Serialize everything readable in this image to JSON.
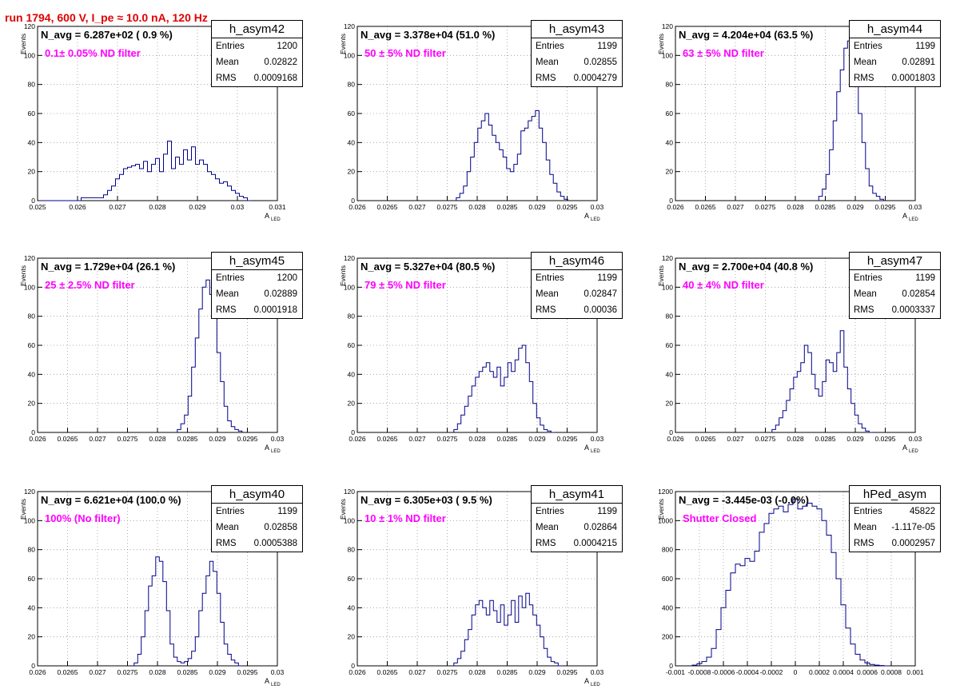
{
  "title": "run 1794,   600 V, I_pe ≈ 10.0 nA, 120 Hz",
  "stat_labels": {
    "entries": "Entries",
    "mean": "Mean",
    "rms": "RMS"
  },
  "chart_data": [
    {
      "type": "bar",
      "name": "h_asym42",
      "navg": "N_avg = 6.287e+02 ( 0.9 %)",
      "note": "0.1± 0.05% ND filter",
      "entries": "1200",
      "mean": "0.02822",
      "rms": "0.0009168",
      "xlim": [
        0.025,
        0.031
      ],
      "ylim": [
        0,
        120
      ],
      "xticks": [
        "0.025",
        "0.026",
        "0.027",
        "0.028",
        "0.029",
        "0.03",
        "0.031"
      ],
      "yticks": [
        "0",
        "20",
        "40",
        "60",
        "80",
        "100",
        "120"
      ],
      "xlabel": "A",
      "xlabel_sub": "LED",
      "ylabel": "Events",
      "x": [
        0.02558,
        0.0266,
        0.0267,
        0.0268,
        0.0269,
        0.027,
        0.0271,
        0.0272,
        0.0273,
        0.0274,
        0.0275,
        0.0276,
        0.0277,
        0.0278,
        0.0279,
        0.028,
        0.0281,
        0.0282,
        0.0283,
        0.0284,
        0.0285,
        0.0286,
        0.0287,
        0.0288,
        0.0289,
        0.029,
        0.0291,
        0.0292,
        0.0293,
        0.0294,
        0.0295,
        0.0296,
        0.0297,
        0.0298,
        0.0299,
        0.03,
        0.0301,
        0.0302,
        0.0303
      ],
      "values": [
        0,
        2,
        4,
        7,
        10,
        15,
        18,
        22,
        23,
        24,
        25,
        22,
        27,
        20,
        25,
        29,
        20,
        32,
        41,
        22,
        30,
        25,
        35,
        28,
        37,
        25,
        28,
        25,
        20,
        18,
        15,
        12,
        13,
        10,
        7,
        5,
        3,
        2,
        0
      ]
    },
    {
      "type": "bar",
      "name": "h_asym43",
      "navg": "N_avg = 3.378e+04 (51.0 %)",
      "note": "50 ± 5% ND filter",
      "entries": "1199",
      "mean": "0.02855",
      "rms": "0.0004279",
      "xlim": [
        0.026,
        0.03
      ],
      "ylim": [
        0,
        120
      ],
      "xticks": [
        "0.026",
        "0.0265",
        "0.027",
        "0.0275",
        "0.028",
        "0.0285",
        "0.029",
        "0.0295",
        "0.03"
      ],
      "yticks": [
        "0",
        "20",
        "40",
        "60",
        "80",
        "100",
        "120"
      ],
      "xlabel": "A",
      "xlabel_sub": "LED",
      "ylabel": "Events",
      "x": [
        0.02768,
        0.02774,
        0.0278,
        0.02786,
        0.02792,
        0.02798,
        0.02804,
        0.0281,
        0.02816,
        0.02822,
        0.02828,
        0.02834,
        0.0284,
        0.02846,
        0.02852,
        0.02858,
        0.02864,
        0.0287,
        0.02876,
        0.02882,
        0.02888,
        0.02894,
        0.029,
        0.02906,
        0.02912,
        0.02918,
        0.02924,
        0.0293,
        0.02936,
        0.02942,
        0.02948
      ],
      "values": [
        2,
        5,
        10,
        20,
        30,
        40,
        50,
        55,
        60,
        52,
        45,
        40,
        35,
        30,
        22,
        20,
        25,
        32,
        48,
        50,
        55,
        58,
        62,
        50,
        40,
        28,
        18,
        12,
        6,
        3,
        1
      ]
    },
    {
      "type": "bar",
      "name": "h_asym44",
      "navg": "N_avg = 4.204e+04 (63.5 %)",
      "note": "63 ± 5% ND filter",
      "entries": "1199",
      "mean": "0.02891",
      "rms": "0.0001803",
      "xlim": [
        0.026,
        0.03
      ],
      "ylim": [
        0,
        120
      ],
      "xticks": [
        "0.026",
        "0.0265",
        "0.027",
        "0.0275",
        "0.028",
        "0.0285",
        "0.029",
        "0.0295",
        "0.03"
      ],
      "yticks": [
        "0",
        "20",
        "40",
        "60",
        "80",
        "100",
        "120"
      ],
      "xlabel": "A",
      "xlabel_sub": "LED",
      "ylabel": "Events",
      "x": [
        0.02842,
        0.02848,
        0.02854,
        0.0286,
        0.02866,
        0.02872,
        0.02878,
        0.02884,
        0.0289,
        0.02896,
        0.02902,
        0.02908,
        0.02914,
        0.0292,
        0.02926,
        0.02932,
        0.02938,
        0.02944
      ],
      "values": [
        3,
        8,
        18,
        35,
        55,
        75,
        90,
        105,
        110,
        100,
        85,
        60,
        40,
        22,
        10,
        5,
        3,
        1
      ]
    },
    {
      "type": "bar",
      "name": "h_asym45",
      "navg": "N_avg = 1.729e+04 (26.1 %)",
      "note": "25 ± 2.5% ND filter",
      "entries": "1200",
      "mean": "0.02889",
      "rms": "0.0001918",
      "xlim": [
        0.026,
        0.03
      ],
      "ylim": [
        0,
        120
      ],
      "xticks": [
        "0.026",
        "0.0265",
        "0.027",
        "0.0275",
        "0.028",
        "0.0285",
        "0.029",
        "0.0295",
        "0.03"
      ],
      "yticks": [
        "0",
        "20",
        "40",
        "60",
        "80",
        "100",
        "120"
      ],
      "xlabel": "A",
      "xlabel_sub": "LED",
      "ylabel": "Events",
      "x": [
        0.02836,
        0.02842,
        0.02848,
        0.02854,
        0.0286,
        0.02866,
        0.02872,
        0.02878,
        0.02884,
        0.0289,
        0.02896,
        0.02902,
        0.02908,
        0.02914,
        0.0292,
        0.02926,
        0.02932,
        0.02938
      ],
      "values": [
        2,
        6,
        12,
        25,
        45,
        65,
        85,
        100,
        105,
        95,
        80,
        55,
        35,
        18,
        8,
        4,
        2,
        1
      ]
    },
    {
      "type": "bar",
      "name": "h_asym46",
      "navg": "N_avg = 5.327e+04 (80.5 %)",
      "note": "79 ± 5% ND filter",
      "entries": "1199",
      "mean": "0.02847",
      "rms": "0.00036",
      "xlim": [
        0.026,
        0.03
      ],
      "ylim": [
        0,
        120
      ],
      "xticks": [
        "0.026",
        "0.0265",
        "0.027",
        "0.0275",
        "0.028",
        "0.0285",
        "0.029",
        "0.0295",
        "0.03"
      ],
      "yticks": [
        "0",
        "20",
        "40",
        "60",
        "80",
        "100",
        "120"
      ],
      "xlabel": "A",
      "xlabel_sub": "LED",
      "ylabel": "Events",
      "x": [
        0.02764,
        0.0277,
        0.02776,
        0.02782,
        0.02788,
        0.02794,
        0.028,
        0.02806,
        0.02812,
        0.02818,
        0.02824,
        0.0283,
        0.02836,
        0.02842,
        0.02848,
        0.02854,
        0.0286,
        0.02866,
        0.02872,
        0.02878,
        0.02884,
        0.0289,
        0.02896,
        0.02902,
        0.02908,
        0.02914,
        0.0292,
        0.02926
      ],
      "values": [
        2,
        6,
        12,
        18,
        25,
        32,
        38,
        42,
        45,
        48,
        42,
        38,
        45,
        32,
        38,
        48,
        42,
        50,
        58,
        60,
        48,
        35,
        20,
        10,
        5,
        2,
        1,
        0
      ]
    },
    {
      "type": "bar",
      "name": "h_asym47",
      "navg": "N_avg = 2.700e+04 (40.8 %)",
      "note": "40 ± 4% ND filter",
      "entries": "1199",
      "mean": "0.02854",
      "rms": "0.0003337",
      "xlim": [
        0.026,
        0.03
      ],
      "ylim": [
        0,
        120
      ],
      "xticks": [
        "0.026",
        "0.0265",
        "0.027",
        "0.0275",
        "0.028",
        "0.0285",
        "0.029",
        "0.0295",
        "0.03"
      ],
      "yticks": [
        "0",
        "20",
        "40",
        "60",
        "80",
        "100",
        "120"
      ],
      "xlabel": "A",
      "xlabel_sub": "LED",
      "ylabel": "Events",
      "x": [
        0.02764,
        0.0277,
        0.02776,
        0.02782,
        0.02788,
        0.02794,
        0.028,
        0.02806,
        0.02812,
        0.02818,
        0.02824,
        0.0283,
        0.02836,
        0.02842,
        0.02848,
        0.02854,
        0.0286,
        0.02866,
        0.02872,
        0.02878,
        0.02884,
        0.0289,
        0.02896,
        0.02902,
        0.02908,
        0.02914,
        0.0292,
        0.02926
      ],
      "values": [
        2,
        5,
        10,
        15,
        22,
        30,
        38,
        42,
        48,
        60,
        55,
        40,
        30,
        25,
        35,
        50,
        48,
        42,
        55,
        70,
        45,
        30,
        20,
        12,
        6,
        3,
        1,
        0
      ]
    },
    {
      "type": "bar",
      "name": "h_asym40",
      "navg": "N_avg = 6.621e+04 (100.0 %)",
      "note": "100% (No filter)",
      "entries": "1199",
      "mean": "0.02858",
      "rms": "0.0005388",
      "xlim": [
        0.026,
        0.03
      ],
      "ylim": [
        0,
        120
      ],
      "xticks": [
        "0.026",
        "0.0265",
        "0.027",
        "0.0275",
        "0.028",
        "0.0285",
        "0.029",
        "0.0295",
        "0.03"
      ],
      "yticks": [
        "0",
        "20",
        "40",
        "60",
        "80",
        "100",
        "120"
      ],
      "xlabel": "A",
      "xlabel_sub": "LED",
      "ylabel": "Events",
      "x": [
        0.02764,
        0.0277,
        0.02776,
        0.02782,
        0.02788,
        0.02794,
        0.028,
        0.02806,
        0.02812,
        0.02818,
        0.02824,
        0.0283,
        0.02836,
        0.02842,
        0.02848,
        0.02854,
        0.0286,
        0.02866,
        0.02872,
        0.02878,
        0.02884,
        0.0289,
        0.02896,
        0.02902,
        0.02908,
        0.02914,
        0.0292,
        0.02926,
        0.02932,
        0.02938
      ],
      "values": [
        2,
        8,
        20,
        38,
        55,
        62,
        75,
        72,
        58,
        38,
        15,
        6,
        3,
        2,
        3,
        5,
        10,
        20,
        38,
        50,
        62,
        72,
        65,
        50,
        30,
        15,
        8,
        4,
        2,
        0
      ]
    },
    {
      "type": "bar",
      "name": "h_asym41",
      "navg": "N_avg = 6.305e+03 ( 9.5 %)",
      "note": "10 ± 1% ND filter",
      "entries": "1199",
      "mean": "0.02864",
      "rms": "0.0004215",
      "xlim": [
        0.026,
        0.03
      ],
      "ylim": [
        0,
        120
      ],
      "xticks": [
        "0.026",
        "0.0265",
        "0.027",
        "0.0275",
        "0.028",
        "0.0285",
        "0.029",
        "0.0295",
        "0.03"
      ],
      "yticks": [
        "0",
        "20",
        "40",
        "60",
        "80",
        "100",
        "120"
      ],
      "xlabel": "A",
      "xlabel_sub": "LED",
      "ylabel": "Events",
      "x": [
        0.02764,
        0.0277,
        0.02776,
        0.02782,
        0.02788,
        0.02794,
        0.028,
        0.02806,
        0.02812,
        0.02818,
        0.02824,
        0.0283,
        0.02836,
        0.02842,
        0.02848,
        0.02854,
        0.0286,
        0.02866,
        0.02872,
        0.02878,
        0.02884,
        0.0289,
        0.02896,
        0.02902,
        0.02908,
        0.02914,
        0.0292,
        0.02926,
        0.02932,
        0.02938
      ],
      "values": [
        2,
        5,
        10,
        18,
        25,
        35,
        42,
        45,
        40,
        35,
        45,
        38,
        30,
        42,
        28,
        35,
        45,
        30,
        48,
        40,
        50,
        42,
        35,
        28,
        20,
        12,
        6,
        3,
        2,
        0
      ]
    },
    {
      "type": "bar",
      "name": "hPed_asym",
      "navg": "N_avg = -3.445e-03 (-0.0%)",
      "note": "Shutter Closed",
      "entries": "45822",
      "mean": "-1.117e-05",
      "rms": "0.0002957",
      "xlim": [
        -0.001,
        0.001
      ],
      "ylim": [
        0,
        1200
      ],
      "xticks": [
        "-0.001",
        "-0.0008",
        "-0.0006",
        "-0.0004",
        "-0.0002",
        "0",
        "0.0002",
        "0.0004",
        "0.0006",
        "0.0008",
        "0.001"
      ],
      "yticks": [
        "0",
        "200",
        "400",
        "600",
        "800",
        "1000",
        "1200"
      ],
      "xlabel": "",
      "xlabel_sub": "",
      "ylabel": "Events",
      "x": [
        -0.00084,
        -0.0008,
        -0.00076,
        -0.00072,
        -0.00068,
        -0.00064,
        -0.0006,
        -0.00056,
        -0.00052,
        -0.00048,
        -0.00044,
        -0.0004,
        -0.00036,
        -0.00032,
        -0.00028,
        -0.00024,
        -0.0002,
        -0.00016,
        -0.00012,
        -8e-05,
        -4e-05,
        0,
        4e-05,
        8e-05,
        0.00012,
        0.00016,
        0.0002,
        0.00024,
        0.00028,
        0.00032,
        0.00036,
        0.0004,
        0.00044,
        0.00048,
        0.00052,
        0.00056,
        0.0006,
        0.00064,
        0.00068,
        0.00072,
        0.00076
      ],
      "values": [
        5,
        15,
        30,
        60,
        120,
        250,
        400,
        520,
        640,
        700,
        690,
        740,
        720,
        790,
        920,
        980,
        1050,
        1080,
        1100,
        1060,
        1110,
        1150,
        1080,
        1100,
        1120,
        1100,
        1080,
        1000,
        900,
        780,
        600,
        420,
        260,
        150,
        80,
        40,
        20,
        10,
        5,
        2,
        0
      ]
    }
  ]
}
